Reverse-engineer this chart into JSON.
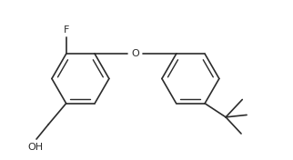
{
  "bg_color": "#ffffff",
  "bond_color": "#2c2c2c",
  "figsize": [
    3.22,
    1.76
  ],
  "dpi": 100,
  "lw": 1.2,
  "fs": 7.5,
  "ring_r": 0.52,
  "xlim": [
    0.1,
    5.4
  ],
  "ylim": [
    0.55,
    3.3
  ]
}
